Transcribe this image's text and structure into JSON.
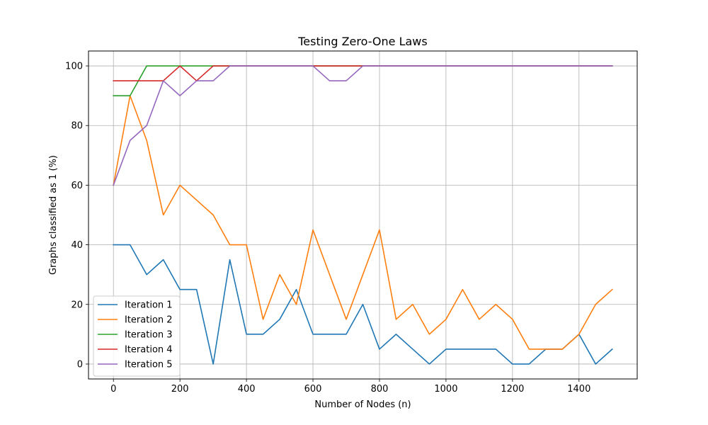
{
  "chart_data": {
    "type": "line",
    "title": "Testing Zero-One Laws",
    "xlabel": "Number of Nodes (n)",
    "ylabel": "Graphs classified as 1 (%)",
    "xlim": [
      -75,
      1575
    ],
    "ylim": [
      -5,
      105
    ],
    "xticks": [
      0,
      200,
      400,
      600,
      800,
      1000,
      1200,
      1400
    ],
    "yticks": [
      0,
      20,
      40,
      60,
      80,
      100
    ],
    "grid": true,
    "legend_position": "lower-left",
    "x": [
      0,
      50,
      100,
      150,
      200,
      250,
      300,
      350,
      400,
      450,
      500,
      550,
      600,
      650,
      700,
      750,
      800,
      850,
      900,
      950,
      1000,
      1050,
      1100,
      1150,
      1200,
      1250,
      1300,
      1350,
      1400,
      1450,
      1500
    ],
    "series": [
      {
        "name": "Iteration 1",
        "color": "#1f77b4",
        "values": [
          40,
          40,
          30,
          35,
          25,
          25,
          0,
          35,
          10,
          10,
          15,
          25,
          10,
          10,
          10,
          20,
          5,
          10,
          5,
          0,
          5,
          5,
          5,
          5,
          0,
          0,
          5,
          5,
          10,
          0,
          5
        ]
      },
      {
        "name": "Iteration 2",
        "color": "#ff7f0e",
        "values": [
          60,
          90,
          75,
          50,
          60,
          55,
          50,
          40,
          40,
          15,
          30,
          20,
          45,
          30,
          15,
          30,
          45,
          15,
          20,
          10,
          15,
          25,
          15,
          20,
          15,
          5,
          5,
          5,
          10,
          20,
          25
        ]
      },
      {
        "name": "Iteration 3",
        "color": "#2ca02c",
        "values": [
          90,
          90,
          100,
          100,
          100,
          100,
          100,
          100,
          100,
          100,
          100,
          100,
          100,
          100,
          100,
          100,
          100,
          100,
          100,
          100,
          100,
          100,
          100,
          100,
          100,
          100,
          100,
          100,
          100,
          100,
          100
        ]
      },
      {
        "name": "Iteration 4",
        "color": "#d62728",
        "values": [
          95,
          95,
          95,
          95,
          100,
          95,
          100,
          100,
          100,
          100,
          100,
          100,
          100,
          100,
          100,
          100,
          100,
          100,
          100,
          100,
          100,
          100,
          100,
          100,
          100,
          100,
          100,
          100,
          100,
          100,
          100
        ]
      },
      {
        "name": "Iteration 5",
        "color": "#9467bd",
        "values": [
          60,
          75,
          80,
          95,
          90,
          95,
          95,
          100,
          100,
          100,
          100,
          100,
          100,
          95,
          95,
          100,
          100,
          100,
          100,
          100,
          100,
          100,
          100,
          100,
          100,
          100,
          100,
          100,
          100,
          100,
          100
        ]
      }
    ]
  }
}
